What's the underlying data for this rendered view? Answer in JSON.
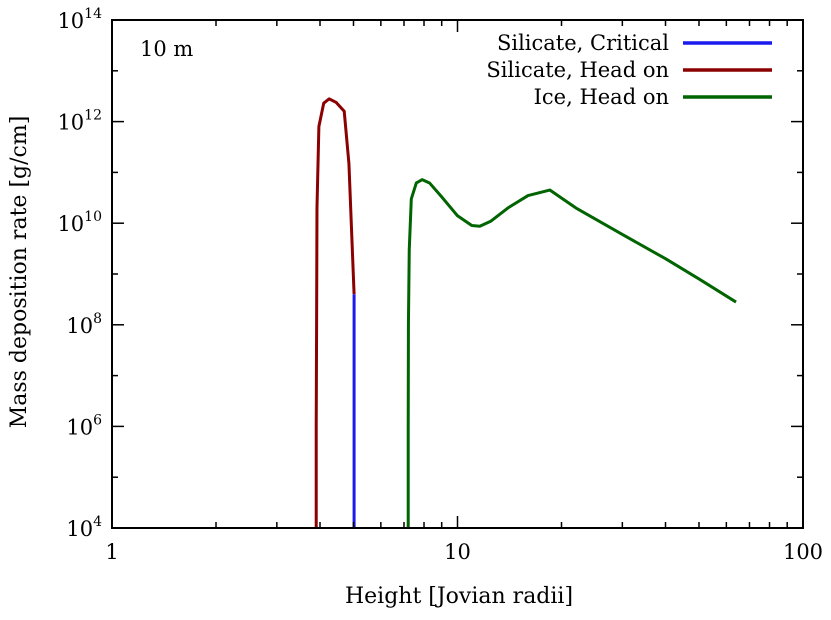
{
  "chart_data": {
    "type": "line",
    "annotation": "10 m",
    "xlabel": "Height [Jovian radii]",
    "ylabel": "Mass deposition rate [g/cm]",
    "x_scale": "log",
    "y_scale": "log",
    "xlim": [
      1,
      100
    ],
    "ylim": [
      10000,
      100000000000000
    ],
    "x_ticks": [
      {
        "value": 1,
        "label": "1"
      },
      {
        "value": 10,
        "label": "10"
      },
      {
        "value": 100,
        "label": "100"
      }
    ],
    "y_ticks": [
      {
        "value": 10000,
        "base": "10",
        "exp": "4"
      },
      {
        "value": 1000000,
        "base": "10",
        "exp": "6"
      },
      {
        "value": 100000000,
        "base": "10",
        "exp": "8"
      },
      {
        "value": 10000000000,
        "base": "10",
        "exp": "10"
      },
      {
        "value": 1000000000000,
        "base": "10",
        "exp": "12"
      },
      {
        "value": 100000000000000,
        "base": "10",
        "exp": "14"
      }
    ],
    "grid": false,
    "legend_position": "top-right",
    "series": [
      {
        "name": "Silicate, Critical",
        "color": "#1a1aee",
        "points": [
          [
            5.02,
            400000000
          ],
          [
            5.02,
            10000
          ]
        ]
      },
      {
        "name": "Silicate, Head on",
        "color": "#8b0000",
        "points": [
          [
            3.9,
            10000
          ],
          [
            3.9,
            1000000
          ],
          [
            3.91,
            100000000
          ],
          [
            3.92,
            20000000000
          ],
          [
            3.97,
            800000000000
          ],
          [
            4.1,
            2300000000000
          ],
          [
            4.25,
            2800000000000
          ],
          [
            4.45,
            2400000000000
          ],
          [
            4.7,
            1600000000000
          ],
          [
            4.85,
            150000000000
          ],
          [
            5.02,
            400000000
          ]
        ]
      },
      {
        "name": "Ice, Head on",
        "color": "#006400",
        "points": [
          [
            7.2,
            10000
          ],
          [
            7.2,
            1000000
          ],
          [
            7.21,
            100000000
          ],
          [
            7.25,
            3000000000
          ],
          [
            7.35,
            30000000000
          ],
          [
            7.6,
            62000000000
          ],
          [
            7.9,
            72000000000
          ],
          [
            8.3,
            62000000000
          ],
          [
            9.0,
            33000000000
          ],
          [
            10.0,
            14000000000
          ],
          [
            11.0,
            9000000000
          ],
          [
            11.6,
            8700000000
          ],
          [
            12.5,
            11000000000
          ],
          [
            14.0,
            20000000000
          ],
          [
            16.0,
            35000000000
          ],
          [
            18.5,
            45000000000
          ],
          [
            22.0,
            20000000000
          ],
          [
            30.0,
            6000000000
          ],
          [
            40.0,
            2000000000
          ],
          [
            50.0,
            800000000
          ],
          [
            64.0,
            280000000
          ]
        ]
      }
    ]
  }
}
